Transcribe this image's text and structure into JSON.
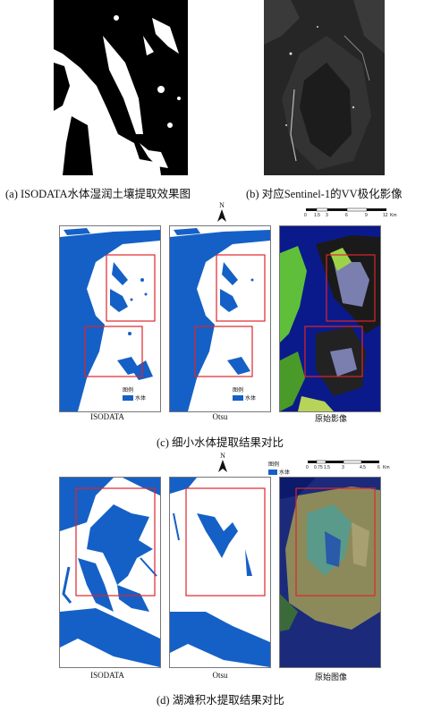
{
  "figure": {
    "captions": {
      "a": "(a) ISODATA水体湿润土壤提取效果图",
      "b": "(b) 对应Sentinel-1的VV极化影像",
      "c": "(c) 细小水体提取结果对比",
      "d": "(d) 湖滩积水提取结果对比"
    },
    "panel_c": {
      "sublabels": [
        "ISODATA",
        "Otsu",
        "原始影像"
      ],
      "legend": {
        "title": "图例",
        "item": "水体"
      },
      "north": "N",
      "scalebar": {
        "ticks": [
          "0",
          "1.5",
          "3",
          "6",
          "9",
          "12"
        ],
        "unit": "Km"
      }
    },
    "panel_d": {
      "sublabels": [
        "ISODATA",
        "Otsu",
        "原始图像"
      ],
      "legend": {
        "title": "图例",
        "item": "水体"
      },
      "north": "N",
      "scalebar": {
        "ticks": [
          "0",
          "0.75",
          "1.5",
          "3",
          "4.5",
          "6"
        ],
        "unit": "Km"
      }
    },
    "colors": {
      "water": "#1560c6",
      "highlight_box": "#e0262b",
      "land": "#ffffff"
    }
  }
}
